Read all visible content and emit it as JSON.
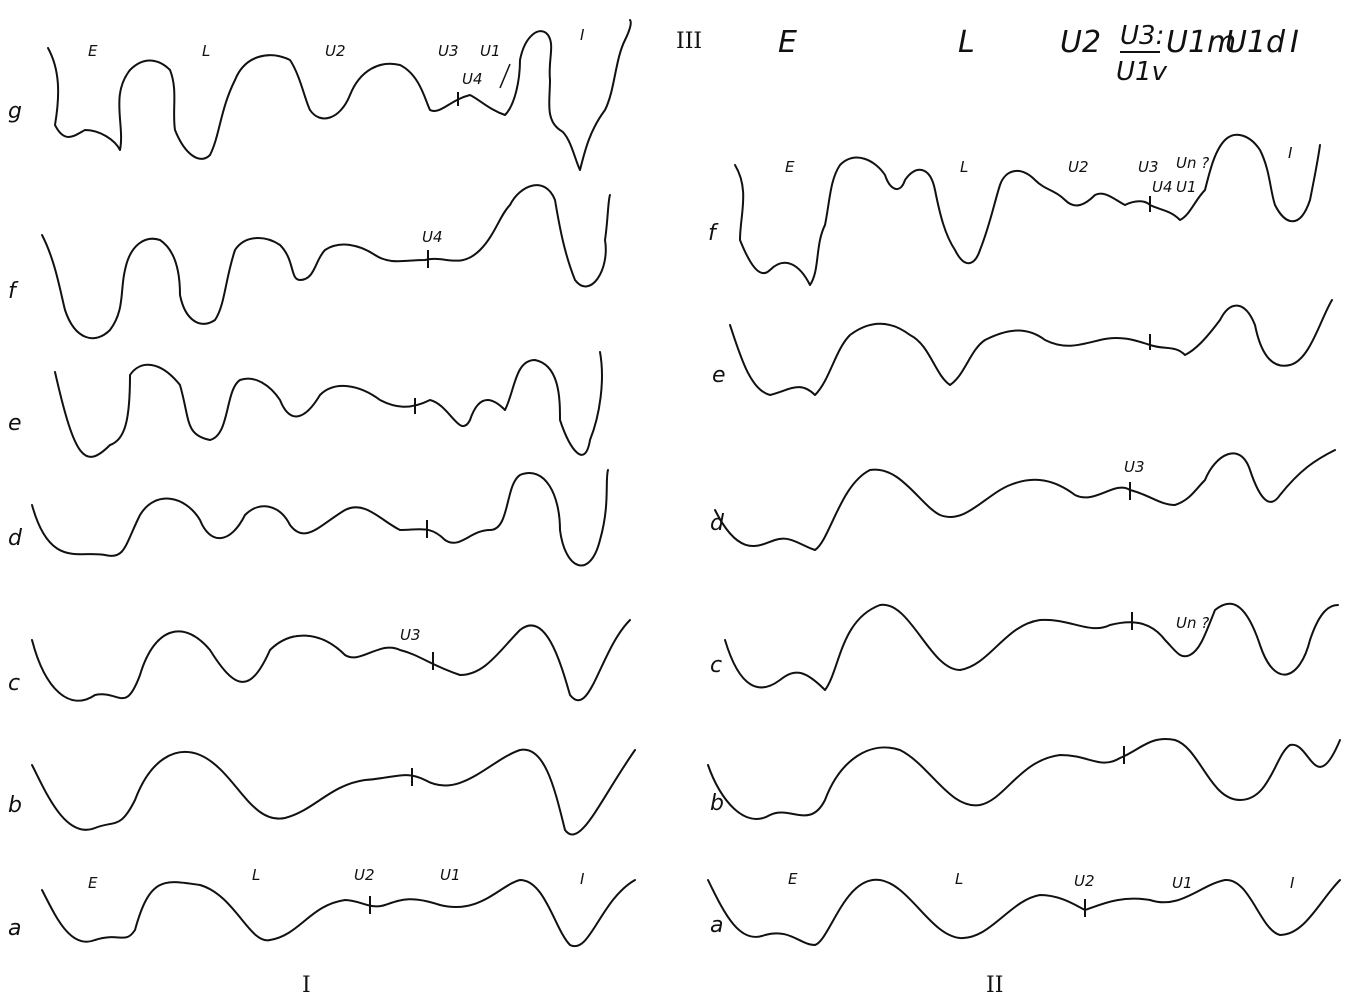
{
  "row_labels": [
    "g",
    "f",
    "e",
    "d",
    "c",
    "b",
    "a"
  ],
  "panels": {
    "left": "I",
    "right": "II",
    "top": "III"
  },
  "region_labels": {
    "left_g": [
      "E",
      "L",
      "U2",
      "U3",
      "U1",
      "U4",
      "I"
    ],
    "left_f": [
      "U4"
    ],
    "left_c": [
      "U3"
    ],
    "left_a": [
      "E",
      "L",
      "U2",
      "U1",
      "I"
    ],
    "right_f": [
      "E",
      "L",
      "U2",
      "U3",
      "Un ?",
      "U4",
      "U1",
      "I"
    ],
    "right_d": [
      "U3"
    ],
    "right_c": [
      "Un ?"
    ],
    "right_a": [
      "E",
      "L",
      "U2",
      "U1",
      "I"
    ]
  },
  "legend_top": {
    "E": "E",
    "L": "L",
    "U2": "U2",
    "U3": "U3:",
    "U1v": "U1v",
    "U1m": "U1m",
    "U1d": "U1d",
    "I": "I"
  }
}
